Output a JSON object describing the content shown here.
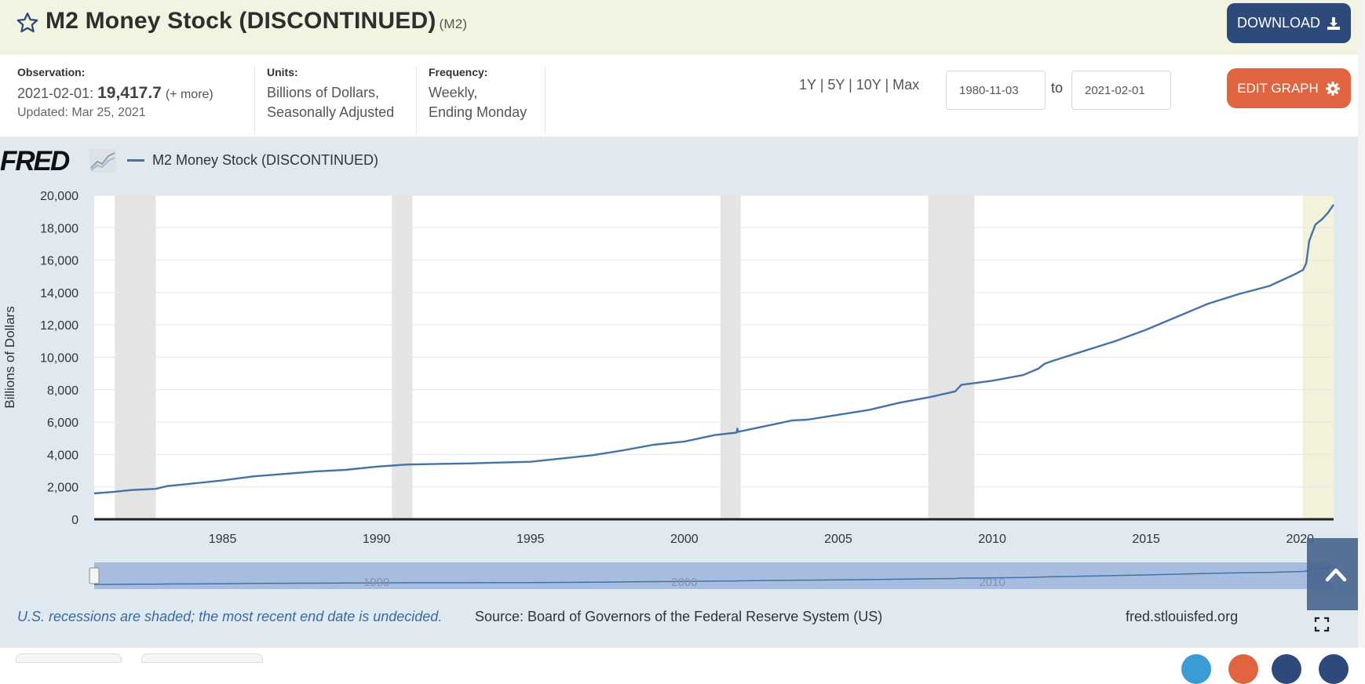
{
  "header": {
    "title": "M2 Money Stock (DISCONTINUED)",
    "code": "(M2)",
    "download_label": "DOWNLOAD"
  },
  "meta": {
    "observation_label": "Observation:",
    "observation_date": "2021-02-01:",
    "observation_value": "19,417.7",
    "observation_more": "(+ more)",
    "updated": "Updated: Mar 25, 2021",
    "units_label": "Units:",
    "units_line1": "Billions of Dollars,",
    "units_line2": "Seasonally Adjusted",
    "frequency_label": "Frequency:",
    "frequency_line1": "Weekly,",
    "frequency_line2": "Ending Monday"
  },
  "controls": {
    "range_links": [
      "1Y",
      "5Y",
      "10Y",
      "Max"
    ],
    "date_from": "1980-11-03",
    "to_label": "to",
    "date_to": "2021-02-01",
    "edit_label": "EDIT GRAPH"
  },
  "graph": {
    "brand": "FRED",
    "legend_series": "M2 Money Stock (DISCONTINUED)",
    "footnote": "U.S. recessions are shaded; the most recent end date is undecided.",
    "source": "Source: Board of Governors of the Federal Reserve System (US)",
    "site": "fred.stlouisfed.org",
    "colors": {
      "line": "#4572a7",
      "recession": "#e4e4e4",
      "recent": "#f3f3db",
      "navigator": "#8fa8d6"
    }
  },
  "chart_data": {
    "type": "line",
    "ylabel": "Billions of Dollars",
    "ylim": [
      0,
      20000
    ],
    "xlim": [
      1980.83,
      2021.09
    ],
    "y_ticks": [
      0,
      2000,
      4000,
      6000,
      8000,
      10000,
      12000,
      14000,
      16000,
      18000,
      20000
    ],
    "y_tick_labels": [
      "0",
      "2,000",
      "4,000",
      "6,000",
      "8,000",
      "10,000",
      "12,000",
      "14,000",
      "16,000",
      "18,000",
      "20,000"
    ],
    "x_ticks": [
      1985,
      1990,
      1995,
      2000,
      2005,
      2010,
      2015,
      2020
    ],
    "x_tick_labels": [
      "1985",
      "1990",
      "1995",
      "2000",
      "2005",
      "2010",
      "2015",
      "2020"
    ],
    "navigator_labels": [
      "1990",
      "2000",
      "2010"
    ],
    "recessions": [
      [
        1981.5,
        1982.83
      ],
      [
        1990.5,
        1991.17
      ],
      [
        2001.17,
        2001.83
      ],
      [
        2007.92,
        2009.42
      ]
    ],
    "recent_shaded": [
      2020.08,
      2021.09
    ],
    "grid": true,
    "legend": "top-left",
    "series": [
      {
        "name": "M2 Money Stock (DISCONTINUED)",
        "x": [
          1980.83,
          1981.5,
          1982.0,
          1982.83,
          1983.2,
          1984.0,
          1985.0,
          1986.0,
          1987.0,
          1988.0,
          1989.0,
          1990.0,
          1991.0,
          1992.0,
          1993.0,
          1994.0,
          1995.0,
          1996.0,
          1997.0,
          1998.0,
          1999.0,
          2000.0,
          2001.0,
          2001.7,
          2001.72,
          2001.75,
          2002.0,
          2003.0,
          2003.5,
          2004.0,
          2005.0,
          2006.0,
          2007.0,
          2008.0,
          2008.8,
          2009.0,
          2010.0,
          2011.0,
          2011.5,
          2011.7,
          2012.0,
          2013.0,
          2014.0,
          2015.0,
          2016.0,
          2017.0,
          2018.0,
          2019.0,
          2019.8,
          2020.1,
          2020.2,
          2020.3,
          2020.5,
          2020.7,
          2020.9,
          2021.09
        ],
        "values": [
          1600,
          1700,
          1800,
          1880,
          2050,
          2200,
          2400,
          2650,
          2800,
          2950,
          3050,
          3250,
          3380,
          3420,
          3450,
          3500,
          3550,
          3750,
          3950,
          4250,
          4600,
          4800,
          5200,
          5350,
          5600,
          5400,
          5500,
          5900,
          6100,
          6150,
          6450,
          6750,
          7200,
          7550,
          7900,
          8300,
          8550,
          8900,
          9300,
          9600,
          9800,
          10400,
          11000,
          11700,
          12500,
          13300,
          13900,
          14400,
          15100,
          15400,
          15800,
          17200,
          18200,
          18500,
          18900,
          19417.7
        ]
      }
    ]
  }
}
